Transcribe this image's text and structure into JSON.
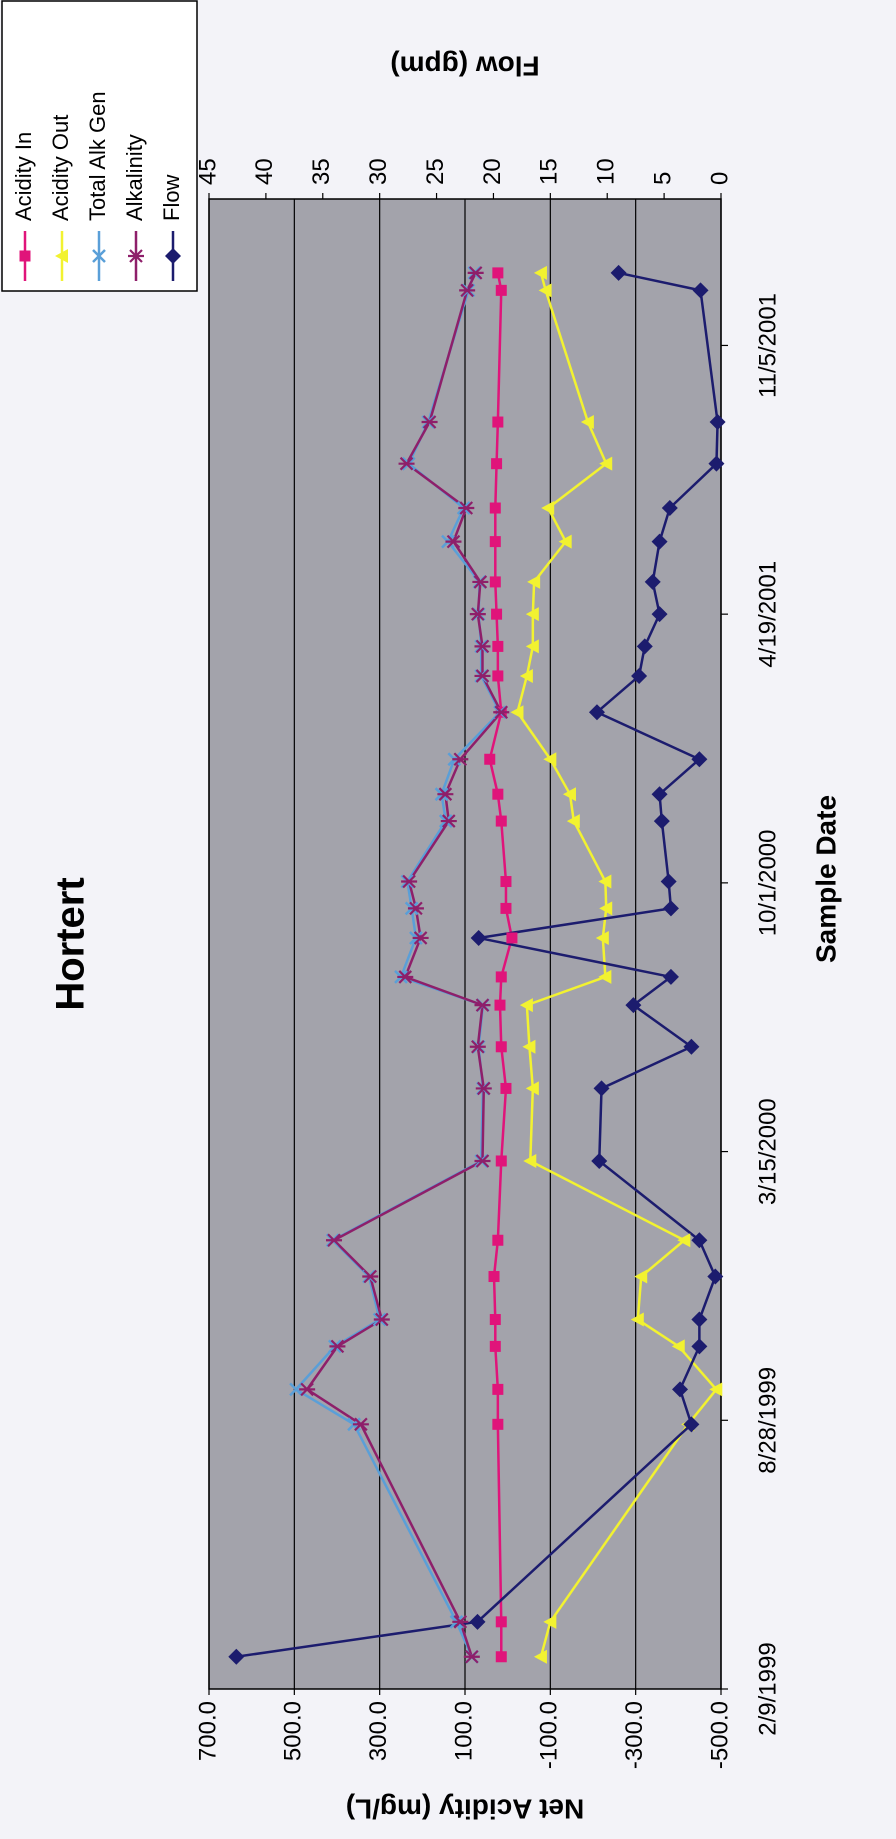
{
  "chart_data": {
    "type": "line",
    "title": "Hortert",
    "x_label": "Sample Date",
    "y_label": "Net Acidity (mg/L)",
    "y2_label": "Flow (gpm)",
    "x": [
      "3/5/1999",
      "3/31/1999",
      "8/25/1999",
      "9/20/1999",
      "10/22/1999",
      "11/11/1999",
      "12/13/1999",
      "1/9/2000",
      "3/8/2000",
      "5/1/2000",
      "6/1/2000",
      "7/2/2000",
      "7/23/2000",
      "8/21/2000",
      "9/12/2000",
      "10/2/2000",
      "11/16/2000",
      "12/6/2000",
      "1/1/2001",
      "2/5/2001",
      "3/4/2001",
      "3/26/2001",
      "4/19/2001",
      "5/13/2001",
      "6/12/2001",
      "7/7/2001",
      "8/9/2001",
      "9/9/2001",
      "12/16/2001",
      "12/29/2001"
    ],
    "xlim": [
      "2/9/1999",
      "2/22/2002"
    ],
    "xticks": [
      "2/9/1999",
      "8/28/1999",
      "3/15/2000",
      "10/1/2000",
      "4/19/2001",
      "11/5/2001"
    ],
    "ylim": [
      -500,
      700
    ],
    "yticks": [
      {
        "value": -500,
        "label": "-500.0"
      },
      {
        "value": -300,
        "label": "-300.0"
      },
      {
        "value": -100,
        "label": "-100.0"
      },
      {
        "value": 100,
        "label": "100.0"
      },
      {
        "value": 300,
        "label": "300.0"
      },
      {
        "value": 500,
        "label": "500.0"
      },
      {
        "value": 700,
        "label": "700.0"
      }
    ],
    "y2lim": [
      0,
      45
    ],
    "y2ticks": [
      0,
      5,
      10,
      15,
      20,
      25,
      30,
      35,
      40,
      45
    ],
    "grid": true,
    "legend": "top-right",
    "series": [
      {
        "name": "Acidity In",
        "color": "#e0147a",
        "marker": "square",
        "values": [
          15,
          15,
          23,
          23,
          29,
          29,
          32,
          23,
          15,
          4,
          15,
          18,
          15,
          -10,
          4,
          4,
          15,
          23,
          42,
          15,
          23,
          23,
          26,
          29,
          29,
          29,
          26,
          23,
          15,
          23
        ]
      },
      {
        "name": "Acidity Out",
        "color": "#f2f230",
        "marker": "triangle",
        "values": [
          -78,
          -100,
          -423,
          -489,
          -401,
          -305,
          -313,
          -414,
          -53,
          -59,
          -51,
          -45,
          -229,
          -223,
          -231,
          -229,
          -155,
          -146,
          -100,
          -23,
          -45,
          -59,
          -59,
          -62,
          -136,
          -95,
          -231,
          -188,
          -89,
          -78
        ]
      },
      {
        "name": "Total Alk Gen",
        "color": "#5a9fd8",
        "marker": "x",
        "values": [
          84,
          120,
          360,
          496,
          405,
          300,
          325,
          410,
          62,
          58,
          68,
          58,
          250,
          215,
          225,
          235,
          145,
          155,
          125,
          18,
          62,
          62,
          68,
          66,
          140,
          103,
          232,
          186,
          92,
          78
        ]
      },
      {
        "name": "Alkalinity",
        "color": "#8e1f6a",
        "marker": "asterisk",
        "values": [
          84,
          111,
          344,
          470,
          399,
          295,
          322,
          407,
          59,
          56,
          70,
          59,
          240,
          204,
          215,
          231,
          138,
          146,
          111,
          15,
          59,
          59,
          70,
          64,
          127,
          97,
          237,
          183,
          95,
          75
        ]
      },
      {
        "name": "Flow",
        "color": "#1c1c6e",
        "marker": "diamond",
        "axis": "y2",
        "values": [
          42.6,
          21.4,
          2.6,
          3.6,
          1.9,
          1.9,
          0.5,
          1.9,
          10.7,
          10.5,
          2.6,
          7.7,
          4.4,
          21.3,
          4.4,
          4.6,
          5.2,
          5.4,
          1.9,
          10.9,
          7.2,
          6.7,
          5.4,
          6.0,
          5.4,
          4.5,
          0.4,
          0.3,
          1.8,
          9.0
        ]
      }
    ]
  }
}
